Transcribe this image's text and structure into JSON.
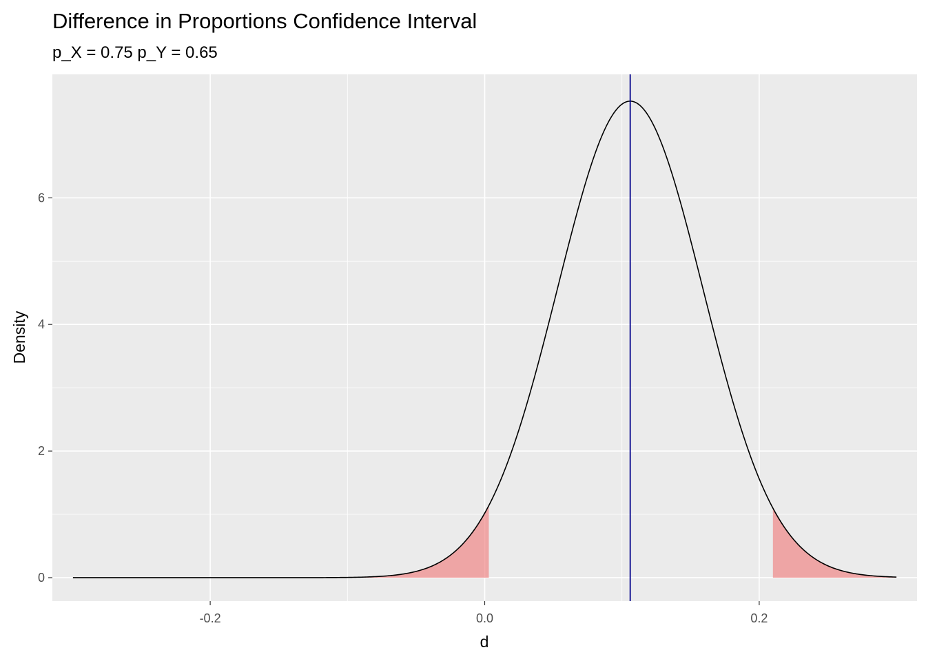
{
  "chart_data": {
    "type": "area",
    "title": "Difference in Proportions Confidence Interval",
    "subtitle": "p_X = 0.75 p_Y = 0.65",
    "xlabel": "d",
    "ylabel": "Density",
    "xlim": [
      -0.315,
      0.315
    ],
    "ylim": [
      -0.37,
      7.95
    ],
    "x_ticks": [
      -0.2,
      0.0,
      0.2
    ],
    "x_tick_labels": [
      "-0.2",
      "0.0",
      "0.2"
    ],
    "y_ticks": [
      0,
      2,
      4,
      6
    ],
    "y_tick_labels": [
      "0",
      "2",
      "4",
      "6"
    ],
    "grid": true,
    "density_curve": {
      "distribution": "normal",
      "mean": 0.106,
      "sd": 0.053,
      "x_range": [
        -0.3,
        0.3
      ]
    },
    "shaded_regions": [
      {
        "name": "lower tail",
        "x_from": -0.1,
        "x_to": 0.003
      },
      {
        "name": "upper tail",
        "x_from": 0.21,
        "x_to": 0.3
      }
    ],
    "vline": {
      "x": 0.106
    },
    "colors": {
      "panel_background": "#ebebeb",
      "grid": "#ffffff",
      "curve": "#000000",
      "shade": "#f08080",
      "vline": "#00008b"
    }
  }
}
